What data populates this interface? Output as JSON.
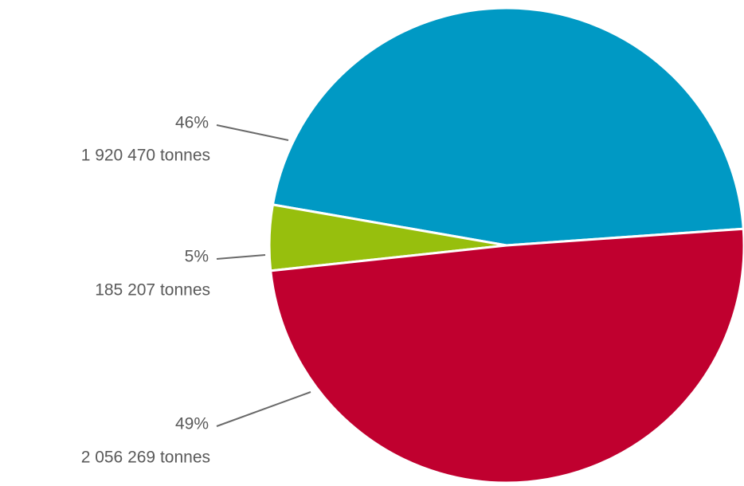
{
  "chart_data": {
    "type": "pie",
    "values": [
      46,
      5,
      49
    ],
    "value_labels": [
      "46%",
      "5%",
      "49%"
    ],
    "tonnes": [
      1920470,
      185207,
      2056269
    ],
    "tonnes_labels": [
      "1 920 470 tonnes",
      "185 207 tonnes",
      "2 056 269 tonnes"
    ],
    "colors": [
      "#0099c4",
      "#97bf0d",
      "#c0002f"
    ]
  }
}
